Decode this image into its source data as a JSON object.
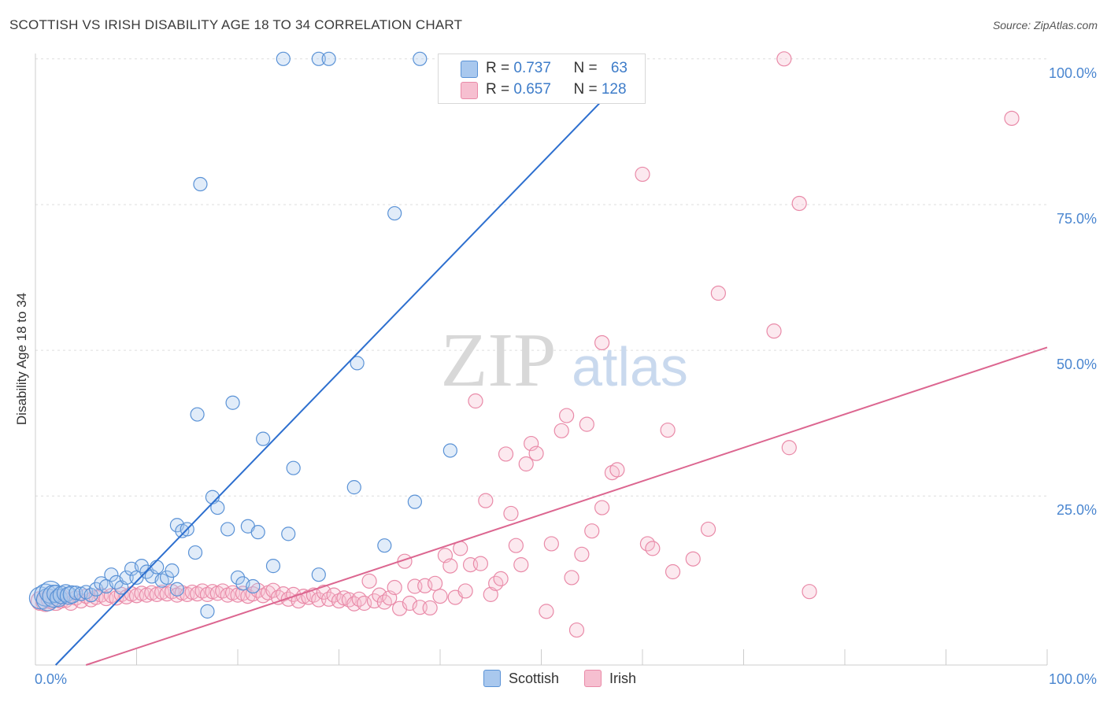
{
  "title": "SCOTTISH VS IRISH DISABILITY AGE 18 TO 34 CORRELATION CHART",
  "source": "Source: ZipAtlas.com",
  "watermark": {
    "zip": "ZIP",
    "atlas": "atlas"
  },
  "colors": {
    "scottish_fill": "#a9c8ee",
    "scottish_stroke": "#5a92d6",
    "scottish_line": "#2d6fcf",
    "irish_fill": "#f6bfd0",
    "irish_stroke": "#e98aa8",
    "irish_line": "#dc6690",
    "tick_blue": "#4a86d0",
    "grid": "#dddddd"
  },
  "legend": {
    "scottish": {
      "label": "Scottish",
      "r_label": "R = ",
      "r_value": "0.737",
      "n_label": "N = ",
      "n_value": "63"
    },
    "irish": {
      "label": "Irish",
      "r_label": "R = ",
      "r_value": "0.657",
      "n_label": "N = ",
      "n_value": "128"
    }
  },
  "chart_data": {
    "type": "scatter",
    "title": "SCOTTISH VS IRISH DISABILITY AGE 18 TO 34 CORRELATION CHART",
    "xlabel": "",
    "ylabel": "Disability Age 18 to 34",
    "xlim": [
      0,
      100
    ],
    "ylim": [
      -4,
      102
    ],
    "x_tick_labels": [
      "0.0%",
      "100.0%"
    ],
    "y_tick_labels": [
      "25.0%",
      "50.0%",
      "75.0%",
      "100.0%"
    ],
    "y_ticks": [
      25,
      50,
      75,
      100
    ],
    "grid": true,
    "legend_position": "top-center",
    "series": [
      {
        "name": "Scottish",
        "trend": {
          "x": [
            2,
            60
          ],
          "y": [
            -4,
            100
          ]
        },
        "points": [
          [
            0.5,
            7.5
          ],
          [
            1.0,
            8.0
          ],
          [
            1.2,
            7.2
          ],
          [
            1.5,
            8.5
          ],
          [
            1.8,
            7.8
          ],
          [
            2.0,
            8.2
          ],
          [
            2.3,
            7.5
          ],
          [
            2.6,
            8.0
          ],
          [
            3.0,
            8.3
          ],
          [
            3.3,
            7.9
          ],
          [
            3.6,
            8.1
          ],
          [
            4.0,
            8.4
          ],
          [
            4.5,
            8.2
          ],
          [
            5.0,
            8.5
          ],
          [
            5.5,
            8.0
          ],
          [
            6.0,
            9.0
          ],
          [
            6.5,
            10.0
          ],
          [
            7.0,
            9.5
          ],
          [
            7.5,
            11.5
          ],
          [
            8.0,
            10.2
          ],
          [
            8.5,
            9.3
          ],
          [
            9.0,
            11.0
          ],
          [
            9.5,
            12.5
          ],
          [
            10.0,
            11.0
          ],
          [
            10.5,
            13.0
          ],
          [
            11.0,
            12.0
          ],
          [
            11.5,
            11.2
          ],
          [
            12.0,
            12.8
          ],
          [
            12.5,
            10.5
          ],
          [
            13.0,
            11.0
          ],
          [
            13.5,
            12.2
          ],
          [
            14.0,
            9.0
          ],
          [
            14.0,
            20.0
          ],
          [
            14.5,
            19.0
          ],
          [
            15.0,
            19.3
          ],
          [
            15.8,
            15.3
          ],
          [
            16.0,
            39.0
          ],
          [
            17.0,
            5.2
          ],
          [
            17.5,
            24.8
          ],
          [
            18.0,
            23.0
          ],
          [
            19.0,
            19.3
          ],
          [
            19.5,
            41.0
          ],
          [
            20.0,
            11.0
          ],
          [
            20.5,
            10.0
          ],
          [
            21.0,
            19.8
          ],
          [
            21.5,
            9.5
          ],
          [
            22.0,
            18.8
          ],
          [
            22.5,
            34.8
          ],
          [
            23.5,
            13.0
          ],
          [
            25.0,
            18.5
          ],
          [
            25.5,
            29.8
          ],
          [
            28.0,
            11.5
          ],
          [
            31.5,
            26.5
          ],
          [
            31.8,
            47.8
          ],
          [
            34.5,
            16.5
          ],
          [
            35.5,
            73.5
          ],
          [
            37.5,
            24.0
          ],
          [
            41.0,
            32.8
          ],
          [
            16.3,
            78.5
          ],
          [
            24.5,
            100
          ],
          [
            28.0,
            100
          ],
          [
            29.0,
            100
          ],
          [
            38.0,
            100
          ]
        ]
      },
      {
        "name": "Irish",
        "trend": {
          "x": [
            5,
            100
          ],
          "y": [
            -4,
            50.5
          ]
        },
        "points": [
          [
            0.5,
            7.0
          ],
          [
            1.0,
            6.8
          ],
          [
            1.5,
            7.3
          ],
          [
            2.0,
            7.0
          ],
          [
            2.5,
            7.4
          ],
          [
            3.0,
            7.1
          ],
          [
            3.5,
            6.6
          ],
          [
            4.0,
            7.5
          ],
          [
            4.5,
            7.0
          ],
          [
            5.0,
            7.8
          ],
          [
            5.5,
            7.2
          ],
          [
            6.0,
            7.6
          ],
          [
            6.5,
            8.0
          ],
          [
            7.0,
            7.4
          ],
          [
            7.5,
            7.9
          ],
          [
            8.0,
            7.5
          ],
          [
            8.5,
            8.1
          ],
          [
            9.0,
            7.7
          ],
          [
            9.5,
            8.2
          ],
          [
            10.0,
            7.9
          ],
          [
            10.5,
            8.3
          ],
          [
            11.0,
            8.0
          ],
          [
            11.5,
            8.4
          ],
          [
            12.0,
            8.1
          ],
          [
            12.5,
            8.5
          ],
          [
            13.0,
            8.2
          ],
          [
            13.5,
            8.6
          ],
          [
            14.0,
            8.0
          ],
          [
            14.5,
            8.4
          ],
          [
            15.0,
            8.1
          ],
          [
            15.5,
            8.5
          ],
          [
            16.0,
            8.2
          ],
          [
            16.5,
            8.7
          ],
          [
            17.0,
            8.1
          ],
          [
            17.5,
            8.6
          ],
          [
            18.0,
            8.3
          ],
          [
            18.5,
            8.7
          ],
          [
            19.0,
            8.0
          ],
          [
            19.5,
            8.4
          ],
          [
            20.0,
            8.0
          ],
          [
            20.5,
            8.3
          ],
          [
            21.0,
            7.8
          ],
          [
            21.5,
            8.2
          ],
          [
            22.0,
            8.8
          ],
          [
            22.5,
            7.9
          ],
          [
            23.0,
            8.4
          ],
          [
            23.5,
            8.8
          ],
          [
            24.0,
            7.6
          ],
          [
            24.5,
            8.2
          ],
          [
            25.0,
            7.3
          ],
          [
            25.5,
            8.1
          ],
          [
            26.0,
            7.0
          ],
          [
            26.5,
            7.8
          ],
          [
            27.0,
            7.6
          ],
          [
            27.5,
            8.0
          ],
          [
            28.0,
            7.2
          ],
          [
            28.5,
            8.5
          ],
          [
            29.0,
            7.3
          ],
          [
            29.5,
            8.0
          ],
          [
            30.0,
            7.0
          ],
          [
            30.5,
            7.5
          ],
          [
            31.0,
            7.2
          ],
          [
            31.5,
            6.5
          ],
          [
            32.0,
            7.3
          ],
          [
            32.5,
            6.6
          ],
          [
            33.0,
            10.4
          ],
          [
            33.5,
            7.0
          ],
          [
            34.0,
            8.0
          ],
          [
            34.5,
            6.8
          ],
          [
            35.0,
            7.5
          ],
          [
            35.5,
            9.3
          ],
          [
            36.0,
            5.7
          ],
          [
            36.5,
            13.8
          ],
          [
            37.0,
            6.6
          ],
          [
            37.5,
            9.5
          ],
          [
            38.0,
            5.9
          ],
          [
            38.5,
            9.6
          ],
          [
            39.0,
            5.8
          ],
          [
            39.5,
            10.0
          ],
          [
            40.0,
            7.8
          ],
          [
            40.5,
            14.8
          ],
          [
            41.0,
            13.0
          ],
          [
            41.5,
            7.6
          ],
          [
            42.0,
            16.0
          ],
          [
            42.5,
            8.7
          ],
          [
            43.0,
            13.2
          ],
          [
            43.5,
            41.3
          ],
          [
            44.0,
            13.4
          ],
          [
            44.5,
            24.2
          ],
          [
            45.0,
            8.1
          ],
          [
            45.5,
            10.0
          ],
          [
            46.0,
            10.8
          ],
          [
            46.5,
            32.2
          ],
          [
            47.0,
            22.0
          ],
          [
            47.5,
            16.5
          ],
          [
            48.0,
            13.2
          ],
          [
            48.5,
            30.5
          ],
          [
            49.0,
            34.0
          ],
          [
            49.5,
            32.3
          ],
          [
            50.5,
            5.2
          ],
          [
            51.0,
            16.8
          ],
          [
            52.0,
            36.2
          ],
          [
            52.5,
            38.8
          ],
          [
            53.0,
            11.0
          ],
          [
            53.5,
            2.0
          ],
          [
            54.0,
            15.0
          ],
          [
            54.5,
            37.3
          ],
          [
            55.0,
            19.0
          ],
          [
            56.0,
            23.0
          ],
          [
            57.0,
            29.0
          ],
          [
            57.5,
            29.5
          ],
          [
            56.0,
            51.3
          ],
          [
            60.0,
            80.2
          ],
          [
            60.5,
            16.8
          ],
          [
            61.0,
            16.0
          ],
          [
            62.5,
            36.3
          ],
          [
            63.0,
            12.0
          ],
          [
            65.0,
            14.2
          ],
          [
            66.5,
            19.3
          ],
          [
            67.5,
            59.8
          ],
          [
            73.0,
            53.3
          ],
          [
            74.5,
            33.3
          ],
          [
            74.0,
            100
          ],
          [
            75.5,
            75.2
          ],
          [
            76.5,
            8.6
          ],
          [
            96.5,
            89.8
          ]
        ]
      }
    ]
  }
}
